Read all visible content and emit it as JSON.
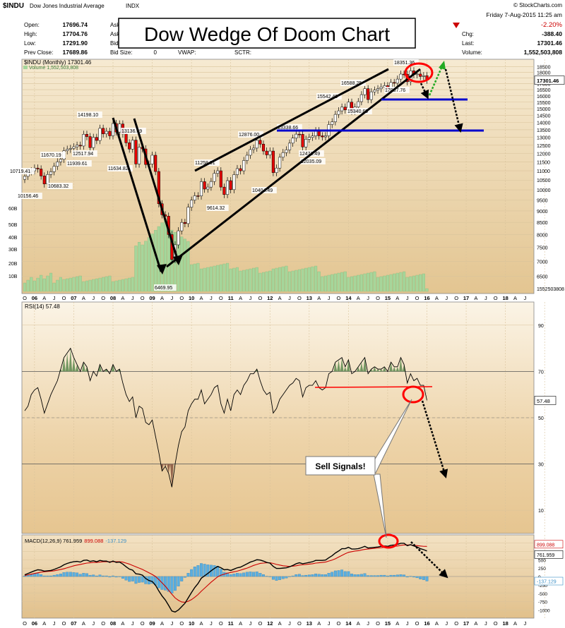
{
  "header": {
    "symbol": "$INDU",
    "name": "Dow Jones Industrial Average",
    "exchange": "INDX",
    "credit": "© StockCharts.com",
    "date": "Friday  7-Aug-2015  11:25 am",
    "change_pct": "-2.20%",
    "stats_left": [
      {
        "label": "Open:",
        "value": "17696.74"
      },
      {
        "label": "High:",
        "value": "17704.76"
      },
      {
        "label": "Low:",
        "value": "17291.90"
      },
      {
        "label": "Prev Close:",
        "value": "17689.86"
      }
    ],
    "stats_mid": [
      {
        "label": "Ask"
      },
      {
        "label": "Ask"
      },
      {
        "label": "Bid"
      }
    ],
    "bid_size_label": "Bid Size:",
    "bid_size_value": "0",
    "vwap_label": "VWAP:",
    "sctr_label": "SCTR:",
    "stats_right": [
      {
        "label": "Chg:",
        "value": "-388.40"
      },
      {
        "label": "Last:",
        "value": "17301.46"
      },
      {
        "label": "Volume:",
        "value": "1,552,503,808"
      }
    ]
  },
  "overlay_title": "Dow Wedge Of Doom Chart",
  "chart_data": [
    {
      "type": "candlestick",
      "title": "$INDU (Monthly) 17301.46",
      "subtitle": "Volume 1,552,503,808",
      "yscale": "log",
      "ylim": [
        6000,
        19000
      ],
      "y_ticks": [
        6500,
        7000,
        7500,
        8000,
        8500,
        9000,
        9500,
        10000,
        10500,
        11000,
        11500,
        12000,
        12500,
        13000,
        13500,
        14000,
        14500,
        15000,
        15500,
        16000,
        16500,
        17000,
        17500,
        18000,
        18500
      ],
      "last_value_label": "17301.46",
      "volume_axis_labels": [
        "60B",
        "50B",
        "40B",
        "30B",
        "20B",
        "10B"
      ],
      "volume_last_label": "1552503808",
      "closes": [
        10700,
        10950,
        11000,
        11150,
        11100,
        10720,
        10300,
        10800,
        10950,
        11250,
        11500,
        11650,
        12160,
        12250,
        12300,
        12400,
        12500,
        12450,
        13200,
        13050,
        12350,
        13000,
        12800,
        13600,
        13230,
        13400,
        13100,
        13930,
        13350,
        13900,
        13220,
        12650,
        12260,
        12820,
        11380,
        12380,
        12270,
        11350,
        11380,
        11890,
        10960,
        9330,
        8830,
        8770,
        8000,
        7060,
        7600,
        8150,
        8500,
        8450,
        9170,
        9500,
        9710,
        9700,
        10420,
        10040,
        10140,
        10430,
        10860,
        11000,
        10140,
        9770,
        10470,
        10010,
        10790,
        11120,
        11000,
        11580,
        11890,
        12230,
        12320,
        12810,
        12570,
        12140,
        11910,
        12140,
        10900,
        11150,
        11770,
        12050,
        12210,
        12630,
        12950,
        13210,
        13200,
        12390,
        12880,
        13000,
        13090,
        13440,
        13100,
        13030,
        13100,
        13860,
        14050,
        14580,
        14840,
        15120,
        14910,
        15500,
        14810,
        15130,
        15540,
        16090,
        16580,
        15700,
        16320,
        16460,
        16580,
        16720,
        16830,
        16560,
        17100,
        17040,
        17390,
        17830,
        17820,
        17160,
        18130,
        17780,
        17840,
        17620,
        17690,
        17300
      ],
      "labels": [
        "10719.41",
        "10156.46",
        "11670.19",
        "10683.32",
        "12517.94",
        "11939.61",
        "14198.10",
        "13136.69",
        "11634.82",
        "6469.95",
        "11258.01",
        "9614.32",
        "12876.00",
        "10404.49",
        "13338.66",
        "12035.09",
        "12471.49",
        "15542.40",
        "16588.25",
        "15340.69",
        "18351.36",
        "17037.76"
      ],
      "x_axis_labels": [
        "O",
        "06",
        "A",
        "J",
        "O",
        "07",
        "A",
        "J",
        "O",
        "08",
        "A",
        "J",
        "O",
        "09",
        "A",
        "J",
        "O",
        "10",
        "A",
        "J",
        "O",
        "11",
        "A",
        "J",
        "O",
        "12",
        "A",
        "J",
        "O",
        "13",
        "A",
        "J",
        "O",
        "14",
        "A",
        "J",
        "O",
        "15",
        "A",
        "J",
        "O",
        "16",
        "A",
        "J",
        "O",
        "17",
        "A",
        "J",
        "O",
        "18",
        "A",
        "J"
      ]
    },
    {
      "type": "line",
      "title": "RSI(14) 57.48",
      "ylim": [
        0,
        100
      ],
      "y_ticks": [
        10,
        30,
        50,
        70,
        90
      ],
      "last_value_label": "57.48",
      "overbought": 70,
      "oversold": 30,
      "values": [
        53,
        55,
        60,
        62,
        63,
        58,
        52,
        56,
        60,
        63,
        66,
        71,
        76,
        78,
        80,
        76,
        73,
        70,
        74,
        72,
        66,
        70,
        68,
        73,
        70,
        71,
        69,
        73,
        70,
        71,
        65,
        60,
        57,
        59,
        50,
        55,
        54,
        48,
        47,
        49,
        42,
        35,
        27,
        29,
        26,
        20,
        30,
        38,
        44,
        46,
        53,
        56,
        58,
        58,
        62,
        56,
        58,
        60,
        63,
        64,
        56,
        52,
        58,
        53,
        60,
        62,
        60,
        64,
        66,
        69,
        69,
        71,
        66,
        62,
        60,
        61,
        52,
        54,
        58,
        60,
        62,
        64,
        65,
        67,
        66,
        59,
        63,
        64,
        64,
        66,
        63,
        62,
        63,
        69,
        70,
        74,
        75,
        76,
        72,
        75,
        69,
        70,
        72,
        74,
        76,
        69,
        71,
        72,
        71,
        71,
        72,
        70,
        74,
        72,
        72,
        76,
        73,
        65,
        69,
        66,
        67,
        64,
        64,
        57.48
      ]
    },
    {
      "type": "line",
      "title": "MACD(12,26,9)",
      "series": [
        {
          "name": "MACD(12,26,9) 761.959",
          "color": "#000000"
        },
        {
          "name": "899.088",
          "color": "#cc0000"
        },
        {
          "name": "-137.129",
          "color": "#3a8fc6"
        }
      ],
      "macd": [
        50,
        90,
        130,
        170,
        200,
        190,
        160,
        170,
        180,
        210,
        250,
        290,
        350,
        390,
        420,
        440,
        450,
        430,
        480,
        490,
        450,
        470,
        440,
        480,
        460,
        460,
        420,
        460,
        420,
        430,
        370,
        290,
        220,
        190,
        80,
        70,
        40,
        -60,
        -120,
        -150,
        -260,
        -430,
        -580,
        -700,
        -860,
        -1030,
        -1060,
        -1000,
        -900,
        -800,
        -640,
        -480,
        -330,
        -210,
        -50,
        20,
        90,
        170,
        240,
        300,
        260,
        200,
        210,
        180,
        220,
        260,
        280,
        330,
        380,
        430,
        460,
        500,
        490,
        460,
        420,
        400,
        300,
        240,
        240,
        250,
        260,
        290,
        330,
        380,
        410,
        380,
        400,
        420,
        440,
        480,
        480,
        480,
        490,
        560,
        620,
        700,
        760,
        830,
        830,
        870,
        820,
        820,
        830,
        860,
        900,
        850,
        860,
        870,
        880,
        900,
        910,
        900,
        930,
        940,
        960,
        990,
        990,
        920,
        950,
        910,
        880,
        830,
        800,
        761.959
      ],
      "signal": [
        30,
        50,
        70,
        90,
        110,
        130,
        140,
        150,
        160,
        170,
        190,
        210,
        230,
        260,
        290,
        320,
        340,
        360,
        380,
        400,
        410,
        420,
        420,
        430,
        440,
        440,
        440,
        440,
        440,
        440,
        430,
        400,
        370,
        330,
        290,
        250,
        210,
        160,
        110,
        60,
        0,
        -90,
        -190,
        -290,
        -410,
        -530,
        -640,
        -710,
        -760,
        -770,
        -740,
        -690,
        -620,
        -540,
        -440,
        -350,
        -260,
        -170,
        -90,
        -10,
        40,
        70,
        100,
        120,
        140,
        160,
        190,
        220,
        250,
        290,
        330,
        360,
        390,
        400,
        410,
        410,
        390,
        360,
        340,
        320,
        310,
        300,
        310,
        320,
        340,
        350,
        360,
        370,
        380,
        400,
        410,
        420,
        430,
        460,
        490,
        530,
        580,
        630,
        680,
        720,
        740,
        760,
        770,
        790,
        810,
        820,
        830,
        840,
        850,
        860,
        870,
        880,
        890,
        900,
        910,
        930,
        940,
        940,
        940,
        930,
        920,
        910,
        900,
        899.088
      ],
      "y_ticks": [
        1000,
        750,
        500,
        250,
        0,
        -250,
        -500,
        -750,
        -1000
      ],
      "last_value_labels": [
        "899.088",
        "761.959",
        "-137.129"
      ]
    }
  ],
  "annotations": {
    "sell_signals": "Sell Signals!"
  },
  "colors": {
    "background_top": "#f5e8cd",
    "background_mid": "#e4c494",
    "up_candle": "#ffffff",
    "down_candle": "#e60000",
    "volume": "#a6d69b",
    "trendline": "#000000",
    "support": "#0000cc",
    "circle": "#ff0000",
    "green_arrow": "#22aa22",
    "histogram": "#5aaee0"
  }
}
